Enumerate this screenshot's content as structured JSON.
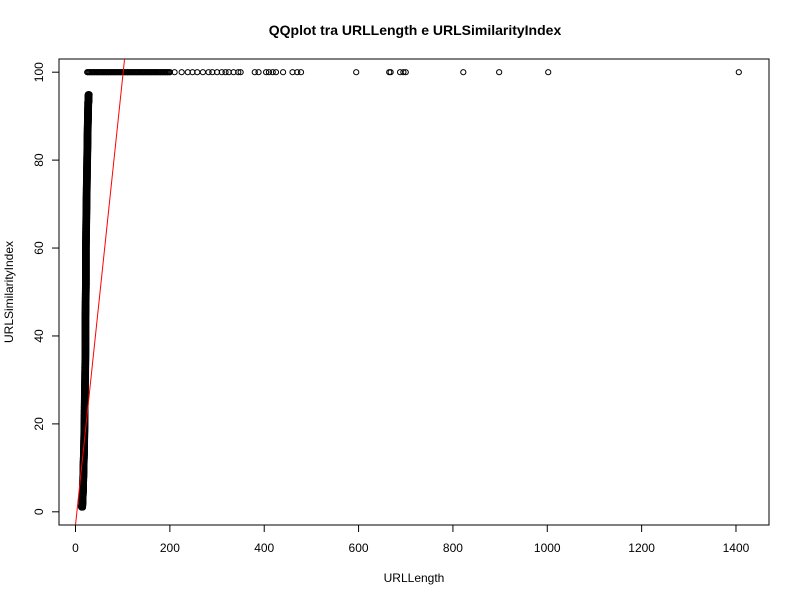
{
  "chart_data": {
    "type": "scatter",
    "title": "QQplot tra URLLength e URLSimilarityIndex",
    "xlabel": "URLLength",
    "ylabel": "URLSimilarityIndex",
    "xlim": [
      -35,
      1470
    ],
    "ylim": [
      -3,
      103
    ],
    "x_ticks": [
      0,
      200,
      400,
      600,
      800,
      1000,
      1200,
      1400
    ],
    "y_ticks": [
      0,
      20,
      40,
      60,
      80,
      100
    ],
    "grid": false,
    "legend": "none",
    "point_color": "#000000",
    "reference_line": {
      "color": "#ff0000",
      "points": [
        [
          0,
          -3
        ],
        [
          104,
          103
        ]
      ]
    },
    "main_cluster": {
      "description_points": [
        [
          14,
          1
        ],
        [
          15,
          3
        ],
        [
          16,
          6
        ],
        [
          17,
          10
        ],
        [
          18,
          14
        ],
        [
          19,
          20
        ],
        [
          20,
          28
        ],
        [
          21,
          36
        ],
        [
          21,
          44
        ],
        [
          22,
          52
        ],
        [
          22,
          60
        ],
        [
          23,
          68
        ],
        [
          24,
          75
        ],
        [
          25,
          82
        ],
        [
          26,
          88
        ],
        [
          27,
          93
        ],
        [
          28,
          95
        ]
      ]
    },
    "top_row_y": 100,
    "top_row_x": [
      25,
      30,
      35,
      40,
      45,
      50,
      55,
      60,
      65,
      70,
      75,
      80,
      85,
      90,
      95,
      100,
      105,
      110,
      115,
      120,
      125,
      130,
      135,
      140,
      145,
      150,
      155,
      160,
      165,
      170,
      175,
      180,
      185,
      190,
      195,
      200,
      210,
      225,
      238,
      248,
      258,
      270,
      282,
      290,
      300,
      310,
      318,
      325,
      335,
      345,
      350,
      380,
      388,
      404,
      410,
      418,
      425,
      440,
      460,
      470,
      478,
      595,
      665,
      668,
      688,
      695,
      700,
      822,
      898,
      1002,
      1406
    ]
  }
}
